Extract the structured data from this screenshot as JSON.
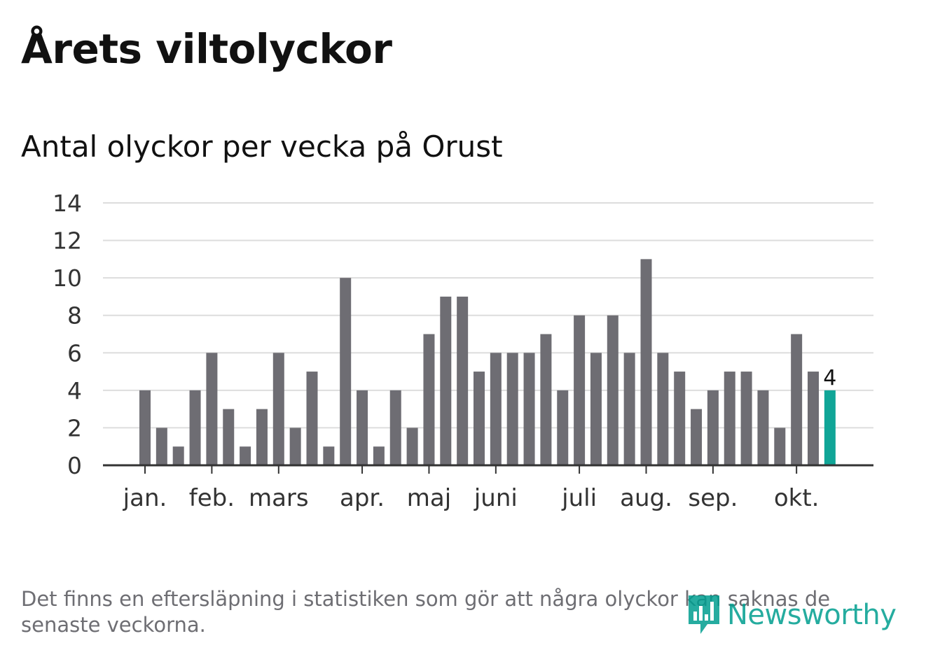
{
  "title": "Årets viltolyckor",
  "subtitle": "Antal olyckor per vecka på Orust",
  "footnote": "Det finns en eftersläpning i statistiken som gör att några olyckor kan saknas de senaste veckorna.",
  "logo": {
    "text": "Newsworthy",
    "icon": "bar-chart-logo-icon"
  },
  "colors": {
    "bar": "#6e6d73",
    "highlight": "#10a597",
    "grid": "#dddddd",
    "axis": "#333333",
    "text": "#333333",
    "logo": "#009e8f"
  },
  "chart_data": {
    "type": "bar",
    "title": "Antal olyckor per vecka på Orust",
    "xlabel": "",
    "ylabel": "",
    "ylim": [
      0,
      14
    ],
    "yticks": [
      0,
      2,
      4,
      6,
      8,
      10,
      12,
      14
    ],
    "grid": true,
    "weeks": [
      1,
      2,
      3,
      4,
      5,
      6,
      7,
      8,
      9,
      10,
      11,
      12,
      13,
      14,
      15,
      16,
      17,
      18,
      19,
      20,
      21,
      22,
      23,
      24,
      25,
      26,
      27,
      28,
      29,
      30,
      31,
      32,
      33,
      34,
      35,
      36,
      37,
      38,
      39,
      40,
      41,
      42
    ],
    "values": [
      4,
      2,
      1,
      4,
      6,
      3,
      1,
      3,
      6,
      2,
      5,
      1,
      10,
      4,
      1,
      4,
      2,
      7,
      9,
      9,
      5,
      6,
      6,
      6,
      7,
      4,
      8,
      6,
      8,
      6,
      11,
      6,
      5,
      3,
      4,
      5,
      5,
      4,
      2,
      7,
      5,
      4
    ],
    "highlight_index": 41,
    "highlight_label": "4",
    "month_ticks": [
      {
        "label": "jan.",
        "week": 1
      },
      {
        "label": "feb.",
        "week": 5
      },
      {
        "label": "mars",
        "week": 9
      },
      {
        "label": "apr.",
        "week": 14
      },
      {
        "label": "maj",
        "week": 18
      },
      {
        "label": "juni",
        "week": 22
      },
      {
        "label": "juli",
        "week": 27
      },
      {
        "label": "aug.",
        "week": 31
      },
      {
        "label": "sep.",
        "week": 35
      },
      {
        "label": "okt.",
        "week": 40
      }
    ]
  }
}
